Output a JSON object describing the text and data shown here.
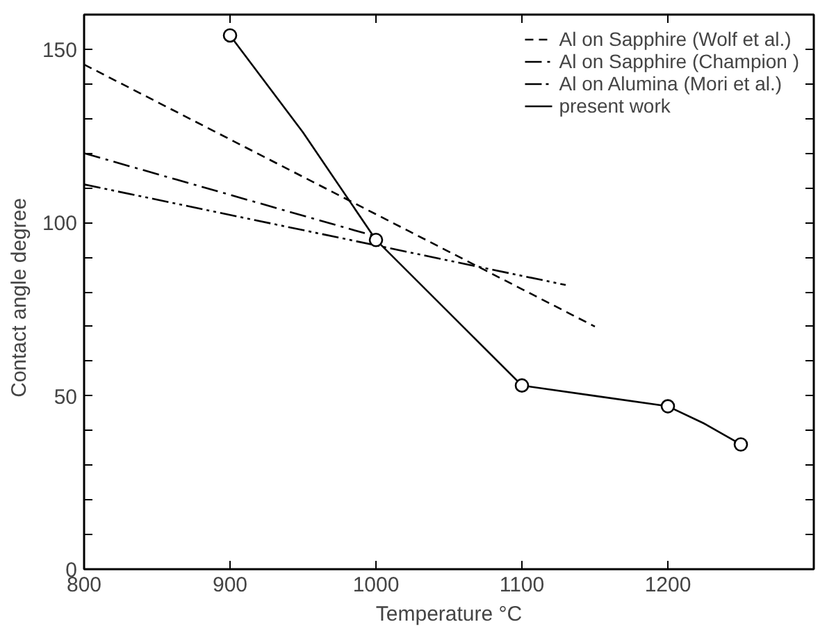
{
  "chart_data": {
    "type": "line",
    "xlabel": "Temperature °C",
    "ylabel": "Contact angle   degree",
    "xlim": [
      800,
      1300
    ],
    "ylim": [
      0,
      160
    ],
    "xticks": [
      800,
      900,
      1000,
      1100,
      1200
    ],
    "yticks": [
      0,
      {
        "value": 10,
        "label": null
      },
      {
        "value": 20,
        "label": null
      },
      {
        "value": 30,
        "label": null
      },
      {
        "value": 40,
        "label": null
      },
      50,
      {
        "value": 60,
        "label": null
      },
      {
        "value": 70,
        "label": null
      },
      {
        "value": 80,
        "label": null
      },
      {
        "value": 90,
        "label": null
      },
      100,
      {
        "value": 110,
        "label": null
      },
      {
        "value": 120,
        "label": null
      },
      {
        "value": 130,
        "label": null
      },
      {
        "value": 140,
        "label": null
      },
      150
    ],
    "grid": false,
    "legend": "top right",
    "series": [
      {
        "name": "Al on Sapphire (Wolf et al.)",
        "color": "#000000",
        "line_style": "dashed",
        "x": [
          800,
          1150
        ],
        "values": [
          145.6,
          70
        ]
      },
      {
        "name": "Al on Sapphire (Champion )",
        "color": "#000000",
        "line_style": "dashdot",
        "x": [
          800,
          1000
        ],
        "values": [
          120,
          96
        ]
      },
      {
        "name": "Al on Alumina (Mori et al.)",
        "color": "#000000",
        "line_style": "dashdotdot",
        "x": [
          800,
          1130
        ],
        "values": [
          111,
          82
        ]
      },
      {
        "name": "present work",
        "color": "#000000",
        "line_style": "solid",
        "marker": "none",
        "x": [
          900,
          950,
          1000,
          1050,
          1100,
          1150,
          1200,
          1225,
          1250
        ],
        "values": [
          154,
          126,
          95,
          74,
          53,
          50,
          47,
          42,
          36
        ]
      },
      {
        "type": "scatter",
        "color": "#000000",
        "marker": "circle",
        "x": [
          900,
          1000,
          1100,
          1200,
          1250
        ],
        "values": [
          154,
          95,
          53,
          47,
          36
        ]
      }
    ]
  }
}
